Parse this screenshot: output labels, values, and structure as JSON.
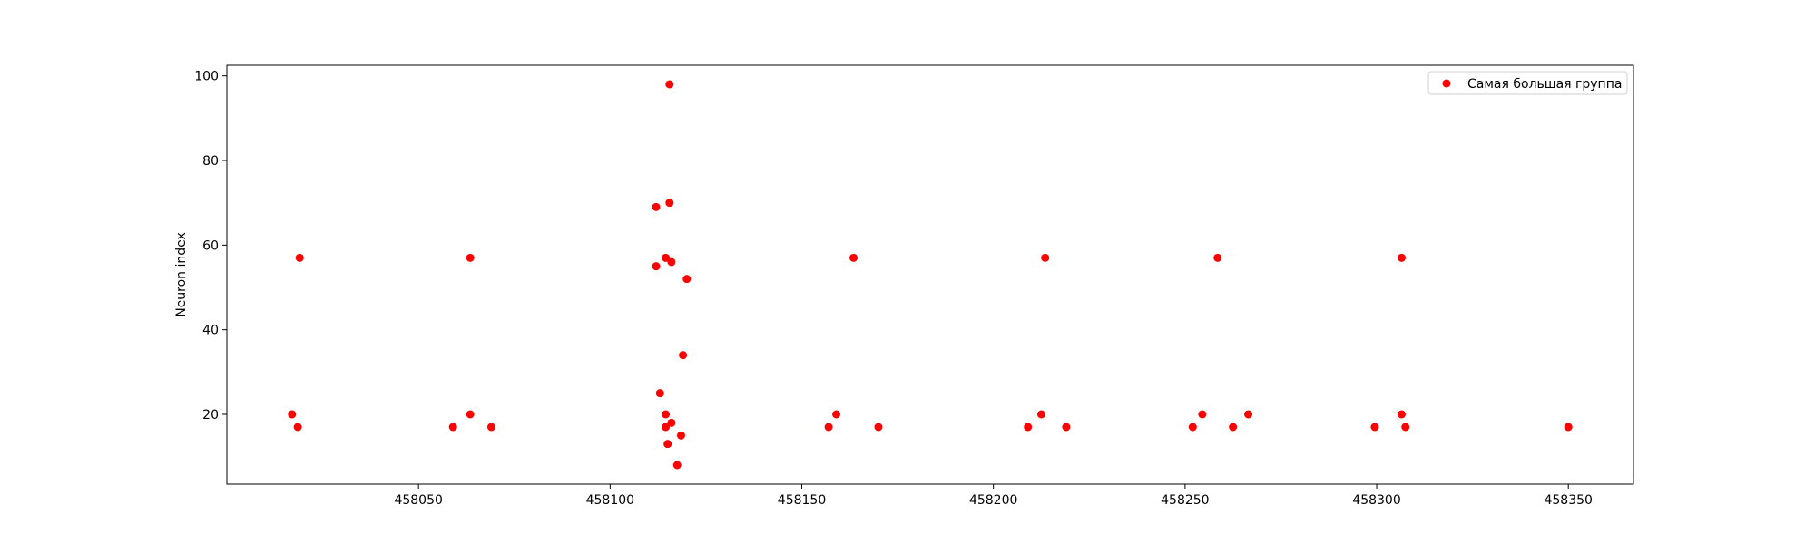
{
  "chart_data": {
    "type": "scatter",
    "title": "",
    "xlabel": "",
    "ylabel": "Neuron index",
    "xlim": [
      458000,
      458367
    ],
    "ylim": [
      3.5,
      102.5
    ],
    "xticks": [
      458050,
      458100,
      458150,
      458200,
      458250,
      458300,
      458350
    ],
    "yticks": [
      20,
      40,
      60,
      80,
      100
    ],
    "grid": false,
    "legend_position": "top-right",
    "series": [
      {
        "name": "Самая большая группа",
        "color": "#ff0000",
        "points": [
          [
            458017.0,
            20
          ],
          [
            458019.0,
            57
          ],
          [
            458018.5,
            17
          ],
          [
            458059.0,
            17
          ],
          [
            458063.5,
            57
          ],
          [
            458063.5,
            20
          ],
          [
            458069.0,
            17
          ],
          [
            458112.0,
            69
          ],
          [
            458112.0,
            55
          ],
          [
            458113.0,
            25
          ],
          [
            458114.5,
            20
          ],
          [
            458114.5,
            57
          ],
          [
            458114.5,
            17
          ],
          [
            458115.0,
            13
          ],
          [
            458115.5,
            98
          ],
          [
            458115.5,
            70
          ],
          [
            458116.0,
            56
          ],
          [
            458116.0,
            18
          ],
          [
            458117.5,
            8
          ],
          [
            458118.5,
            15
          ],
          [
            458119.0,
            34
          ],
          [
            458120.0,
            52
          ],
          [
            458157.0,
            17
          ],
          [
            458159.0,
            20
          ],
          [
            458163.5,
            57
          ],
          [
            458170.0,
            17
          ],
          [
            458209.0,
            17
          ],
          [
            458212.5,
            20
          ],
          [
            458213.5,
            57
          ],
          [
            458219.0,
            17
          ],
          [
            458252.0,
            17
          ],
          [
            458254.5,
            20
          ],
          [
            458258.5,
            57
          ],
          [
            458262.5,
            17
          ],
          [
            458266.5,
            20
          ],
          [
            458299.5,
            17
          ],
          [
            458306.5,
            57
          ],
          [
            458306.5,
            20
          ],
          [
            458307.5,
            17
          ],
          [
            458350.0,
            17
          ]
        ]
      }
    ]
  }
}
